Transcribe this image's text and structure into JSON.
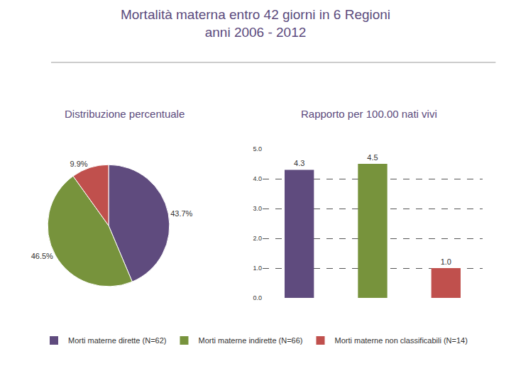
{
  "title": "Mortalità materna entro 42 giorni in 6 Regioni\nanni 2006 - 2012",
  "chart_data": [
    {
      "type": "pie",
      "title": "Distribuzione percentuale",
      "categories": [
        "Morti materne dirette (N=62)",
        "Morti materne indirette (N=66)",
        "Morti materne non classificabili (N=14)"
      ],
      "values": [
        43.7,
        46.5,
        9.9
      ],
      "value_labels": [
        "43.7%",
        "46.5%",
        "9.9%"
      ],
      "colors": [
        "#5f4b7e",
        "#77933c",
        "#c0504d"
      ],
      "data_labels": true
    },
    {
      "type": "bar",
      "title": "Rapporto per 100.00 nati vivi",
      "categories": [
        "Morti materne dirette (N=62)",
        "Morti materne indirette (N=66)",
        "Morti materne non classificabili (N=14)"
      ],
      "values": [
        4.3,
        4.5,
        1.0
      ],
      "value_labels": [
        "4.3",
        "4.5",
        "1.0"
      ],
      "colors": [
        "#5f4b7e",
        "#77933c",
        "#c0504d"
      ],
      "ylim": [
        0,
        5
      ],
      "yticks": [
        {
          "value": 0,
          "label": "0.0"
        },
        {
          "value": 1,
          "label": "1.0"
        },
        {
          "value": 2,
          "label": "2.0"
        },
        {
          "value": 3,
          "label": "3.0"
        },
        {
          "value": 4,
          "label": "4.0"
        },
        {
          "value": 5,
          "label": "5.0"
        }
      ],
      "grid": true,
      "data_labels": true,
      "tick_labels": "y",
      "legend": "bottom"
    }
  ]
}
